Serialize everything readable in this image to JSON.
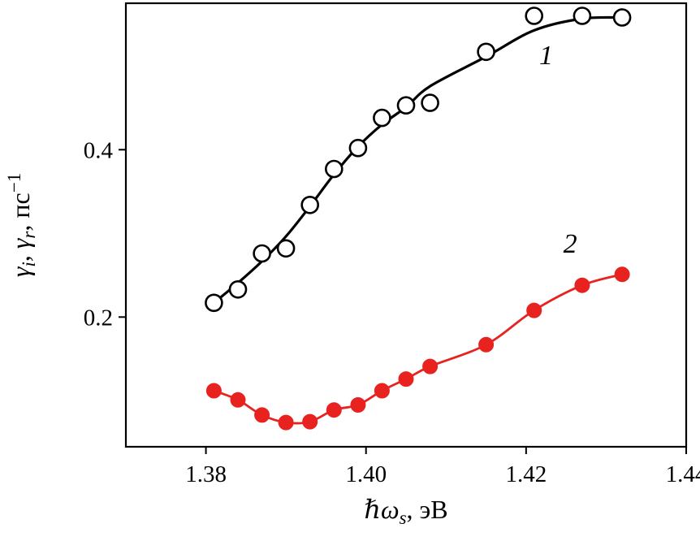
{
  "figure": {
    "background": "#ffffff",
    "frame_color": "#000000"
  },
  "chart_data": {
    "type": "line",
    "title": "",
    "xlabel": "ℏωs, эВ",
    "ylabel": "γi, γr, пс−1",
    "xlabel_parts": [
      {
        "t": "ℏ",
        "i": true
      },
      {
        "t": "ω",
        "i": true
      },
      {
        "t": "s",
        "i": true,
        "sub": true
      },
      {
        "t": ", эВ"
      }
    ],
    "ylabel_parts": [
      {
        "t": "γ",
        "i": true
      },
      {
        "t": "i",
        "i": true,
        "sub": true
      },
      {
        "t": ", "
      },
      {
        "t": "γ",
        "i": true
      },
      {
        "t": "r",
        "i": true,
        "sub": true
      },
      {
        "t": ", пс"
      },
      {
        "t": "−1",
        "sup": true
      }
    ],
    "xlim": [
      1.37,
      1.44
    ],
    "ylim": [
      0.045,
      0.575
    ],
    "grid": false,
    "frame": true,
    "legend": "none",
    "x_ticks": [
      {
        "value": 1.38,
        "label": "1.38"
      },
      {
        "value": 1.4,
        "label": "1.40"
      },
      {
        "value": 1.42,
        "label": "1.42"
      },
      {
        "value": 1.44,
        "label": "1.44"
      }
    ],
    "y_ticks": [
      {
        "value": 0.2,
        "label": "0.2"
      },
      {
        "value": 0.4,
        "label": "0.4"
      }
    ],
    "series": [
      {
        "name": "1",
        "color": "#000000",
        "marker": "open-circle",
        "marker_radius": 10,
        "line_width": 3.2,
        "smooth_fit": true,
        "points": [
          [
            1.381,
            0.217
          ],
          [
            1.384,
            0.233
          ],
          [
            1.387,
            0.276
          ],
          [
            1.39,
            0.282
          ],
          [
            1.393,
            0.334
          ],
          [
            1.396,
            0.377
          ],
          [
            1.399,
            0.402
          ],
          [
            1.402,
            0.438
          ],
          [
            1.405,
            0.453
          ],
          [
            1.408,
            0.456
          ],
          [
            1.415,
            0.517
          ],
          [
            1.421,
            0.56
          ],
          [
            1.427,
            0.56
          ],
          [
            1.432,
            0.558
          ]
        ]
      },
      {
        "name": "2",
        "color": "#e8231f",
        "marker": "filled-circle",
        "marker_radius": 9,
        "line_width": 2.8,
        "smooth_fit": false,
        "points": [
          [
            1.381,
            0.112
          ],
          [
            1.384,
            0.101
          ],
          [
            1.387,
            0.083
          ],
          [
            1.39,
            0.074
          ],
          [
            1.393,
            0.075
          ],
          [
            1.396,
            0.089
          ],
          [
            1.399,
            0.095
          ],
          [
            1.402,
            0.112
          ],
          [
            1.405,
            0.126
          ],
          [
            1.408,
            0.141
          ],
          [
            1.415,
            0.167
          ],
          [
            1.421,
            0.208
          ],
          [
            1.427,
            0.238
          ],
          [
            1.432,
            0.251
          ]
        ]
      }
    ],
    "annotations": [
      {
        "text": "1",
        "x": 1.4225,
        "y": 0.502
      },
      {
        "text": "2",
        "x": 1.4255,
        "y": 0.277
      }
    ]
  }
}
